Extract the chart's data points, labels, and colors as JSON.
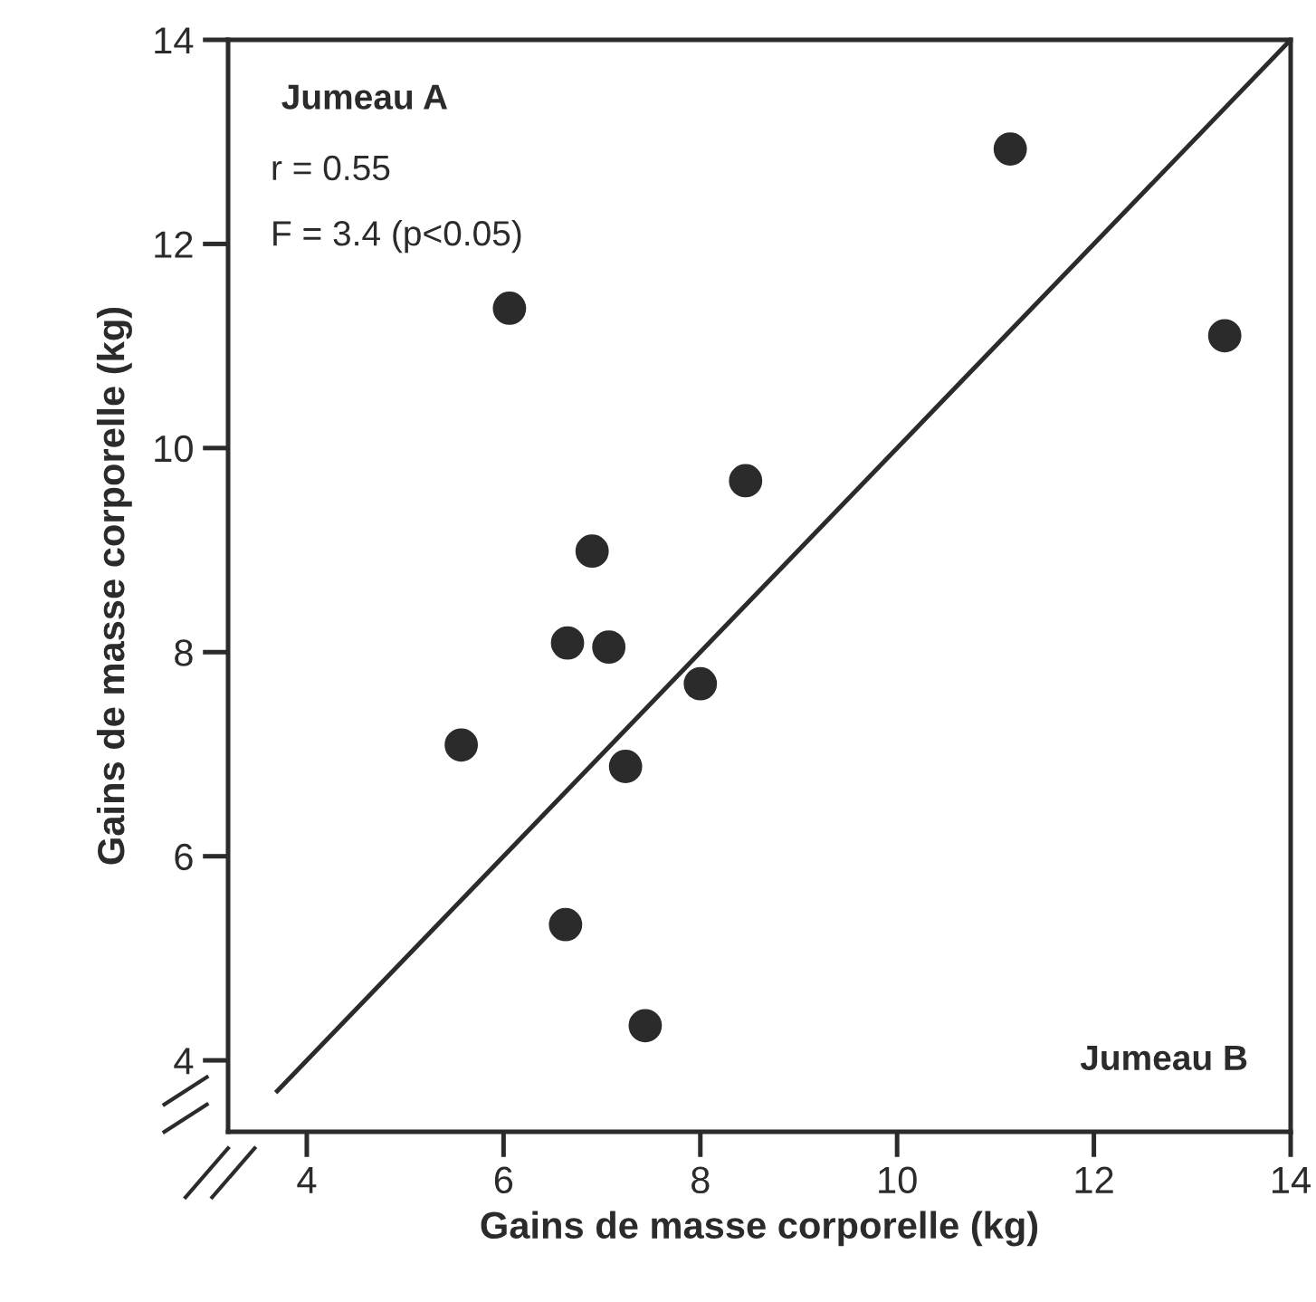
{
  "chart_data": {
    "type": "scatter",
    "xlabel": "Gains de masse corporelle (kg)",
    "ylabel": "Gains de masse corporelle (kg)",
    "annotations": [
      "Jumeau A",
      "r = 0.55",
      "F = 3.4 (p<0.05)",
      "Jumeau B"
    ],
    "xlim": [
      3.2,
      14
    ],
    "ylim": [
      3.3,
      14
    ],
    "xticks": [
      4,
      6,
      8,
      10,
      12,
      14
    ],
    "yticks": [
      4,
      6,
      8,
      10,
      12,
      14
    ],
    "grid": false,
    "series": [
      {
        "color": "#2b2b2b",
        "marker": "circle",
        "x": [
          6.06,
          6.9,
          6.65,
          7.07,
          8.0,
          5.57,
          7.24,
          6.63,
          7.44,
          8.46,
          11.15,
          13.33
        ],
        "values": [
          11.37,
          8.99,
          8.09,
          8.05,
          7.69,
          7.09,
          6.88,
          5.33,
          4.34,
          9.68,
          12.93,
          11.1
        ]
      },
      {
        "type": "line",
        "color": "#2b2b2b",
        "line_style": "solid",
        "x": [
          3.7,
          14
        ],
        "values": [
          3.7,
          14
        ]
      }
    ]
  }
}
